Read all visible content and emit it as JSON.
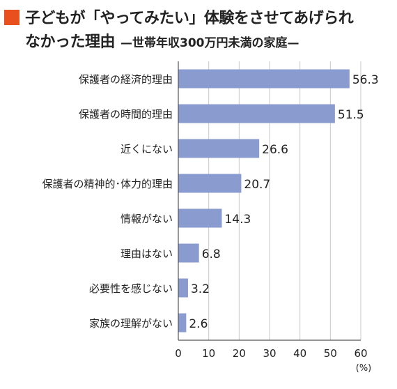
{
  "header": {
    "title_line1": "子どもが「やってみたい」体験をさせてあげられ",
    "title_line2": "なかった理由",
    "subtitle": "—世帯年収300万円未満の家庭—"
  },
  "chart_data": {
    "type": "bar",
    "orientation": "horizontal",
    "title": "子どもが「やってみたい」体験をさせてあげられなかった理由 —世帯年収300万円未満の家庭—",
    "categories": [
      "保護者の経済的理由",
      "保護者の時間的理由",
      "近くにない",
      "保護者の精神的･体力的理由",
      "情報がない",
      "理由はない",
      "必要性を感じない",
      "家族の理解がない"
    ],
    "values": [
      56.3,
      51.5,
      26.6,
      20.7,
      14.3,
      6.8,
      3.2,
      2.6
    ],
    "value_labels": [
      "56.3",
      "51.5",
      "26.6",
      "20.7",
      "14.3",
      "6.8",
      "3.2",
      "2.6"
    ],
    "xlim": [
      0,
      60
    ],
    "ticks": [
      0,
      10,
      20,
      30,
      40,
      50,
      60
    ],
    "tick_labels": [
      "0",
      "10",
      "20",
      "30",
      "40",
      "50",
      "60"
    ],
    "unit": "(%)",
    "grid": true,
    "bar_color": "#8a9bd0",
    "grid_color": "#c8c8c8"
  }
}
